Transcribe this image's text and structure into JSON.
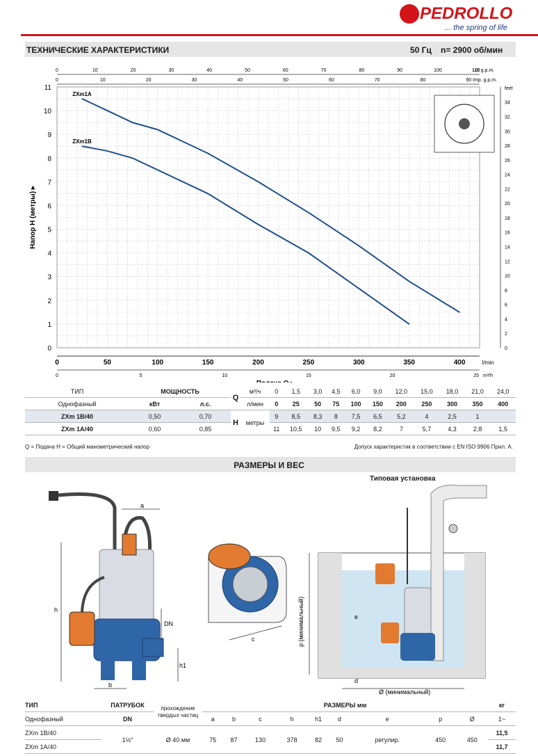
{
  "brand": {
    "name": "PEDROLLO",
    "tagline": "... the spring of life"
  },
  "header": {
    "title": "ТЕХНИЧЕСКИЕ ХАРАКТЕРИСТИКИ",
    "frequency": "50 Гц",
    "speed": "n= 2900 об/мин"
  },
  "chart_data": {
    "type": "line",
    "ylabel": "Напор H (метры)",
    "xlabel": "Подача Q",
    "x_unit": "l/min",
    "xlim": [
      0,
      420
    ],
    "ylim": [
      0,
      11
    ],
    "x_ticks": [
      0,
      50,
      100,
      150,
      200,
      250,
      300,
      350,
      400
    ],
    "y_ticks": [
      0,
      1,
      2,
      3,
      4,
      5,
      6,
      7,
      8,
      9,
      10,
      11
    ],
    "top_axis_us_label": "US g.p.m.",
    "top_axis_us_ticks": [
      "0",
      "10",
      "20",
      "30",
      "40",
      "50",
      "60",
      "70",
      "80",
      "90",
      "100",
      "110"
    ],
    "top_axis_imp_label": "Imp. g.p.m.",
    "top_axis_imp_ticks": [
      "0",
      "10",
      "20",
      "30",
      "40",
      "50",
      "60",
      "70",
      "80",
      "90"
    ],
    "right_axis_label": "feet",
    "right_axis_ticks": [
      "0",
      "2",
      "4",
      "6",
      "8",
      "10",
      "12",
      "14",
      "16",
      "18",
      "20",
      "22",
      "24",
      "26",
      "28",
      "30",
      "32",
      "34"
    ],
    "bottom_axis_m3h_label": "m³/h",
    "bottom_axis_m3h_ticks": [
      "0",
      "5",
      "10",
      "15",
      "20",
      "25"
    ],
    "series": [
      {
        "name": "ZXm1A",
        "x": [
          25,
          50,
          75,
          100,
          150,
          200,
          250,
          300,
          350,
          400
        ],
        "y": [
          10.5,
          10,
          9.5,
          9.2,
          8.2,
          7,
          5.7,
          4.3,
          2.8,
          1.5
        ]
      },
      {
        "name": "ZXm1B",
        "x": [
          25,
          50,
          75,
          100,
          150,
          200,
          250,
          300,
          350
        ],
        "y": [
          8.5,
          8.3,
          8,
          7.5,
          6.5,
          5.2,
          4,
          2.5,
          1
        ]
      }
    ],
    "grid": true
  },
  "perf_table": {
    "tip": "ТИП",
    "odnofazny": "Однофазный",
    "power": "МОЩНОСТЬ",
    "kvt": "кВт",
    "ls": "л.с.",
    "q": "Q",
    "h": "H",
    "metry": "метры",
    "unit_m3h": "м³/ч",
    "unit_lmin": "л/мин",
    "q_m3h": [
      "0",
      "1,5",
      "3,0",
      "4,5",
      "6,0",
      "9,0",
      "12,0",
      "15,0",
      "18,0",
      "21,0",
      "24,0"
    ],
    "q_lmin": [
      "0",
      "25",
      "50",
      "75",
      "100",
      "150",
      "200",
      "250",
      "300",
      "350",
      "400"
    ],
    "rows": [
      {
        "model": "ZXm 1B/40",
        "kw": "0,50",
        "hp": "0,70",
        "h": [
          "9",
          "8,5",
          "8,3",
          "8",
          "7,5",
          "6,5",
          "5,2",
          "4",
          "2,5",
          "1",
          ""
        ]
      },
      {
        "model": "ZXm 1A/40",
        "kw": "0,60",
        "hp": "0,85",
        "h": [
          "11",
          "10,5",
          "10",
          "9,5",
          "9,2",
          "8,2",
          "7",
          "5,7",
          "4,3",
          "2,8",
          "1,5"
        ]
      }
    ]
  },
  "notes": {
    "left": "Q = Подача  H = Общий манометрический напор",
    "right": "Допуск характеристик в соответствии с EN ISO 9906 Прил. A."
  },
  "dims_section": {
    "title": "РАЗМЕРЫ И ВЕС",
    "install_label": "Типовая установка",
    "min_label_p": "p (минимальный)",
    "min_label_d": "Ø (минимальный)"
  },
  "drawing_labels": {
    "a": "a",
    "b": "b",
    "c": "c",
    "h": "h",
    "h1": "h1",
    "dn": "DN",
    "d": "d",
    "e": "e"
  },
  "dims_table": {
    "tip": "ТИП",
    "odnofazny": "Однофазный",
    "patrubok": "ПАТРУБОК",
    "dn": "DN",
    "passage1": "прохождение",
    "passage2": "твердых частиц",
    "sizes": "РАЗМЕРЫ мм",
    "kg": "кг",
    "phase": "1~",
    "cols": [
      "a",
      "b",
      "c",
      "h",
      "h1",
      "d",
      "e",
      "p",
      "Ø"
    ],
    "dn_value": "1½\"",
    "passage_value": "Ø 40 мм",
    "values": [
      "75",
      "87",
      "130",
      "378",
      "82",
      "50",
      "регулир.",
      "450",
      "450"
    ],
    "rows": [
      {
        "model": "ZXm 1B/40",
        "kg": "11,5"
      },
      {
        "model": "ZXm 1A/40",
        "kg": "11,7"
      }
    ]
  },
  "colors": {
    "curve": "#1f4e8c",
    "brand_red": "#d3141b",
    "bar": "#e5e5e5",
    "water": "#cfe6f2"
  }
}
